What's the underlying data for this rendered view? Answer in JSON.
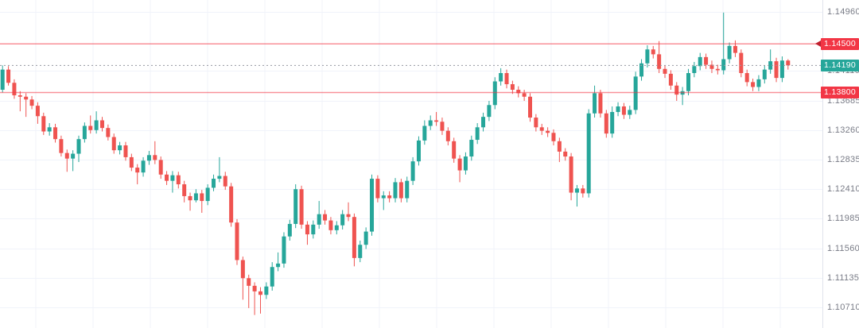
{
  "chart_data": {
    "type": "candlestick",
    "title": "",
    "grid": true,
    "background": "#ffffff",
    "last_price": "1.14190",
    "colors": {
      "up": "#26a69a",
      "down": "#ef5350",
      "grid": "#f0f3fa",
      "axis_text": "#787b86",
      "level_line_red": "#f23645",
      "current_line_dotted": "#9598a1",
      "badge_red": "#f23645",
      "badge_teal": "#26a69a"
    },
    "y_axis": {
      "side": "right",
      "ylim": [
        1.10413,
        1.15131
      ],
      "tick_step": 0.00425,
      "ticks": [
        "1.14960",
        "1.14110",
        "1.13685",
        "1.13260",
        "1.12835",
        "1.12410",
        "1.11985",
        "1.11560",
        "1.11135",
        "1.10710"
      ]
    },
    "price_lines": [
      {
        "label": "1.14500",
        "value": 1.145,
        "role": "resistance-level",
        "style": "solid",
        "line_color": "#f23645",
        "badge_color": "#f23645",
        "arrow": true
      },
      {
        "label": "1.14190",
        "value": 1.1419,
        "role": "current-price",
        "style": "dotted",
        "line_color": "#9598a1",
        "badge_color": "#26a69a",
        "arrow": false
      },
      {
        "label": "1.13800",
        "value": 1.138,
        "role": "support-level",
        "style": "solid",
        "line_color": "#f23645",
        "badge_color": "#f23645",
        "arrow": false
      }
    ],
    "candle_format": [
      "open",
      "high",
      "low",
      "close"
    ],
    "candles": [
      [
        1.1384,
        1.1419,
        1.138,
        1.1413
      ],
      [
        1.1413,
        1.1418,
        1.139,
        1.1394
      ],
      [
        1.1394,
        1.1399,
        1.1371,
        1.1376
      ],
      [
        1.1376,
        1.1382,
        1.1353,
        1.1374
      ],
      [
        1.1374,
        1.1379,
        1.1345,
        1.137
      ],
      [
        1.137,
        1.1375,
        1.1356,
        1.1361
      ],
      [
        1.1361,
        1.1366,
        1.1335,
        1.1346
      ],
      [
        1.1346,
        1.1351,
        1.1319,
        1.1324
      ],
      [
        1.1324,
        1.1336,
        1.1318,
        1.133
      ],
      [
        1.133,
        1.1335,
        1.1308,
        1.1313
      ],
      [
        1.1313,
        1.1318,
        1.1288,
        1.1293
      ],
      [
        1.1293,
        1.1298,
        1.1266,
        1.1285
      ],
      [
        1.1285,
        1.1297,
        1.1267,
        1.1292
      ],
      [
        1.1292,
        1.1318,
        1.128,
        1.1313
      ],
      [
        1.1313,
        1.1337,
        1.1308,
        1.1332
      ],
      [
        1.1332,
        1.1347,
        1.1321,
        1.1326
      ],
      [
        1.1326,
        1.1353,
        1.1321,
        1.134
      ],
      [
        1.134,
        1.1345,
        1.1324,
        1.1329
      ],
      [
        1.1329,
        1.1334,
        1.1311,
        1.1316
      ],
      [
        1.1316,
        1.1321,
        1.1292,
        1.1297
      ],
      [
        1.1297,
        1.1309,
        1.1291,
        1.1304
      ],
      [
        1.1304,
        1.1309,
        1.1282,
        1.1287
      ],
      [
        1.1287,
        1.1292,
        1.1267,
        1.1272
      ],
      [
        1.1272,
        1.1277,
        1.1248,
        1.1265
      ],
      [
        1.1265,
        1.1287,
        1.1259,
        1.1282
      ],
      [
        1.1282,
        1.1296,
        1.1276,
        1.129
      ],
      [
        1.129,
        1.131,
        1.1277,
        1.1283
      ],
      [
        1.1283,
        1.1288,
        1.1256,
        1.1262
      ],
      [
        1.1262,
        1.1267,
        1.1247,
        1.1253
      ],
      [
        1.1253,
        1.1267,
        1.1236,
        1.1261
      ],
      [
        1.1261,
        1.1266,
        1.1242,
        1.1248
      ],
      [
        1.1248,
        1.1253,
        1.1222,
        1.1231
      ],
      [
        1.1231,
        1.1236,
        1.121,
        1.1225
      ],
      [
        1.1225,
        1.1241,
        1.1222,
        1.1235
      ],
      [
        1.1235,
        1.124,
        1.1207,
        1.1224
      ],
      [
        1.1224,
        1.1248,
        1.1218,
        1.1243
      ],
      [
        1.1243,
        1.1262,
        1.1238,
        1.1256
      ],
      [
        1.1256,
        1.1287,
        1.1251,
        1.126
      ],
      [
        1.126,
        1.1266,
        1.124,
        1.1245
      ],
      [
        1.1245,
        1.125,
        1.1187,
        1.1193
      ],
      [
        1.1193,
        1.1198,
        1.1132,
        1.1139
      ],
      [
        1.1139,
        1.1144,
        1.1082,
        1.1113
      ],
      [
        1.1113,
        1.1118,
        1.107,
        1.1102
      ],
      [
        1.1102,
        1.1107,
        1.106,
        1.1094
      ],
      [
        1.1094,
        1.11,
        1.1062,
        1.1089
      ],
      [
        1.1089,
        1.1107,
        1.1083,
        1.1101
      ],
      [
        1.1101,
        1.1136,
        1.1095,
        1.1129
      ],
      [
        1.1129,
        1.115,
        1.1123,
        1.1134
      ],
      [
        1.1134,
        1.1179,
        1.1128,
        1.1173
      ],
      [
        1.1173,
        1.1197,
        1.1167,
        1.1191
      ],
      [
        1.1191,
        1.1248,
        1.1185,
        1.1241
      ],
      [
        1.1241,
        1.1246,
        1.1184,
        1.119
      ],
      [
        1.119,
        1.1195,
        1.1161,
        1.1176
      ],
      [
        1.1176,
        1.1196,
        1.117,
        1.119
      ],
      [
        1.119,
        1.1224,
        1.1184,
        1.1205
      ],
      [
        1.1205,
        1.1211,
        1.119,
        1.1196
      ],
      [
        1.1196,
        1.1201,
        1.1176,
        1.1182
      ],
      [
        1.1182,
        1.1195,
        1.1176,
        1.1189
      ],
      [
        1.1189,
        1.1211,
        1.1183,
        1.1205
      ],
      [
        1.1205,
        1.1222,
        1.1195,
        1.1201
      ],
      [
        1.1201,
        1.1206,
        1.113,
        1.1142
      ],
      [
        1.1142,
        1.1167,
        1.1136,
        1.1161
      ],
      [
        1.1161,
        1.1186,
        1.1155,
        1.118
      ],
      [
        1.118,
        1.1262,
        1.1174,
        1.1256
      ],
      [
        1.1256,
        1.1261,
        1.1222,
        1.1228
      ],
      [
        1.1228,
        1.1238,
        1.1211,
        1.1232
      ],
      [
        1.1232,
        1.1238,
        1.1222,
        1.1228
      ],
      [
        1.1228,
        1.1257,
        1.1222,
        1.1251
      ],
      [
        1.1251,
        1.1256,
        1.1222,
        1.1228
      ],
      [
        1.1228,
        1.1259,
        1.1222,
        1.1253
      ],
      [
        1.1253,
        1.1287,
        1.1247,
        1.1281
      ],
      [
        1.1281,
        1.1317,
        1.1275,
        1.1311
      ],
      [
        1.1311,
        1.134,
        1.1305,
        1.1332
      ],
      [
        1.1332,
        1.1347,
        1.1326,
        1.134
      ],
      [
        1.134,
        1.1352,
        1.1332,
        1.1338
      ],
      [
        1.1338,
        1.1344,
        1.1319,
        1.1325
      ],
      [
        1.1325,
        1.133,
        1.1304,
        1.131
      ],
      [
        1.131,
        1.1315,
        1.1279,
        1.1285
      ],
      [
        1.1285,
        1.129,
        1.1251,
        1.1268
      ],
      [
        1.1268,
        1.1294,
        1.1262,
        1.1288
      ],
      [
        1.1288,
        1.1318,
        1.1282,
        1.1312
      ],
      [
        1.1312,
        1.1336,
        1.1306,
        1.133
      ],
      [
        1.133,
        1.1351,
        1.1324,
        1.1345
      ],
      [
        1.1345,
        1.1368,
        1.1339,
        1.1362
      ],
      [
        1.1362,
        1.1402,
        1.1356,
        1.1396
      ],
      [
        1.1396,
        1.1415,
        1.139,
        1.1408
      ],
      [
        1.1408,
        1.1413,
        1.1386,
        1.1392
      ],
      [
        1.1392,
        1.1397,
        1.1378,
        1.1384
      ],
      [
        1.1384,
        1.1389,
        1.1373,
        1.1379
      ],
      [
        1.1379,
        1.1384,
        1.1368,
        1.1374
      ],
      [
        1.1374,
        1.1379,
        1.1338,
        1.1344
      ],
      [
        1.1344,
        1.1349,
        1.1324,
        1.133
      ],
      [
        1.133,
        1.1335,
        1.1319,
        1.1325
      ],
      [
        1.1325,
        1.133,
        1.1316,
        1.1322
      ],
      [
        1.1322,
        1.1327,
        1.1304,
        1.131
      ],
      [
        1.131,
        1.1315,
        1.128,
        1.1295
      ],
      [
        1.1295,
        1.13,
        1.1282,
        1.1288
      ],
      [
        1.1288,
        1.1293,
        1.1225,
        1.1236
      ],
      [
        1.1236,
        1.1247,
        1.1216,
        1.1242
      ],
      [
        1.1242,
        1.1247,
        1.1229,
        1.1235
      ],
      [
        1.1235,
        1.1356,
        1.1229,
        1.135
      ],
      [
        1.135,
        1.139,
        1.1344,
        1.1379
      ],
      [
        1.1379,
        1.1384,
        1.1344,
        1.135
      ],
      [
        1.135,
        1.1355,
        1.1315,
        1.1321
      ],
      [
        1.1321,
        1.136,
        1.1315,
        1.1352
      ],
      [
        1.1352,
        1.1366,
        1.1346,
        1.136
      ],
      [
        1.136,
        1.1365,
        1.1342,
        1.1348
      ],
      [
        1.1348,
        1.1361,
        1.1342,
        1.1355
      ],
      [
        1.1355,
        1.141,
        1.1349,
        1.1403
      ],
      [
        1.1403,
        1.1428,
        1.1397,
        1.1422
      ],
      [
        1.1422,
        1.1448,
        1.1416,
        1.1442
      ],
      [
        1.1442,
        1.1447,
        1.1429,
        1.1435
      ],
      [
        1.1435,
        1.1454,
        1.1408,
        1.1414
      ],
      [
        1.1414,
        1.1419,
        1.1401,
        1.1407
      ],
      [
        1.1407,
        1.1412,
        1.1384,
        1.139
      ],
      [
        1.139,
        1.1395,
        1.1368,
        1.1377
      ],
      [
        1.1377,
        1.1388,
        1.1362,
        1.1382
      ],
      [
        1.1382,
        1.1414,
        1.1376,
        1.1408
      ],
      [
        1.1408,
        1.1424,
        1.1402,
        1.1418
      ],
      [
        1.1418,
        1.1437,
        1.1412,
        1.1431
      ],
      [
        1.1431,
        1.1436,
        1.1414,
        1.142
      ],
      [
        1.142,
        1.1426,
        1.1408,
        1.1414
      ],
      [
        1.1414,
        1.142,
        1.1406,
        1.1412
      ],
      [
        1.1412,
        1.1495,
        1.1406,
        1.1428
      ],
      [
        1.1428,
        1.1452,
        1.1422,
        1.1447
      ],
      [
        1.1447,
        1.1455,
        1.1431,
        1.1437
      ],
      [
        1.1437,
        1.1442,
        1.1402,
        1.1408
      ],
      [
        1.1408,
        1.1413,
        1.1389,
        1.1395
      ],
      [
        1.1395,
        1.14,
        1.1382,
        1.1388
      ],
      [
        1.1388,
        1.1405,
        1.1382,
        1.1399
      ],
      [
        1.1399,
        1.1419,
        1.1393,
        1.1413
      ],
      [
        1.1413,
        1.1442,
        1.1407,
        1.1425
      ],
      [
        1.1425,
        1.143,
        1.1395,
        1.1401
      ],
      [
        1.1401,
        1.1432,
        1.1395,
        1.1426
      ],
      [
        1.1426,
        1.1428,
        1.1413,
        1.1419
      ]
    ]
  }
}
